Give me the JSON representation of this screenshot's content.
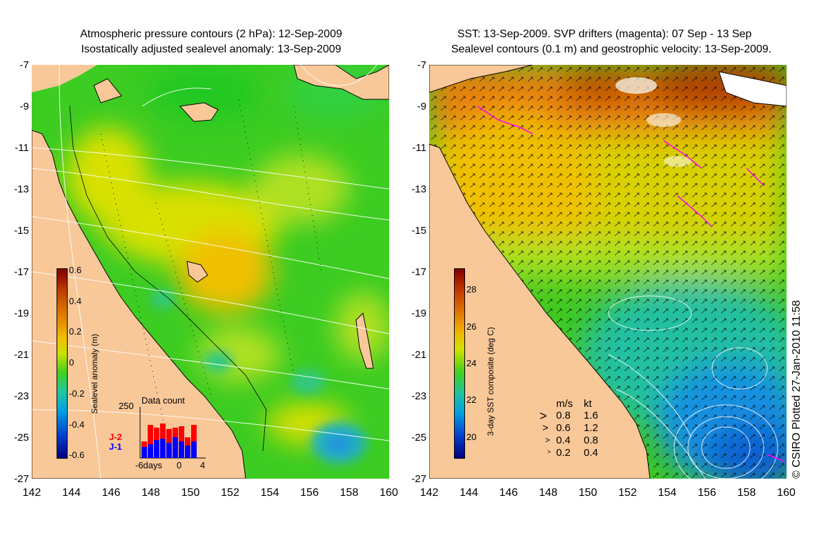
{
  "left_panel": {
    "title_line1": "Atmospheric pressure contours (2 hPa): 12-Sep-2009",
    "title_line2": "Isostatically adjusted sealevel anomaly: 13-Sep-2009",
    "colorbar": {
      "label": "Sealevel anomaly (m)",
      "ticks": [
        "0.6",
        "0.4",
        "0.2",
        "0",
        "-0.2",
        "-0.4",
        "-0.6"
      ]
    },
    "data_count": {
      "title": "Data count",
      "ymax_label": "250",
      "series1": "J-2",
      "series2": "J-1",
      "xlabels": [
        "-6days",
        "0",
        "4"
      ],
      "series1_color": "#ff0000",
      "series2_color": "#0000ff"
    }
  },
  "right_panel": {
    "title_line1": "SST: 13-Sep-2009. SVP drifters (magenta): 07 Sep - 13 Sep",
    "title_line2": "Sealevel contours (0.1 m) and geostrophic velocity: 13-Sep-2009.",
    "colorbar": {
      "label": "3-day SST composite (deg C)",
      "ticks": [
        "28",
        "26",
        "24",
        "22",
        "20"
      ]
    },
    "legend": {
      "header_ms": "m/s",
      "header_kt": "kt",
      "rows": [
        {
          "ms": "0.8",
          "kt": "1.6"
        },
        {
          "ms": "0.6",
          "kt": "1.2"
        },
        {
          "ms": "0.4",
          "kt": "0.8"
        },
        {
          "ms": "0.2",
          "kt": "0.4"
        }
      ]
    }
  },
  "axes": {
    "y_ticks": [
      "-7",
      "-9",
      "-11",
      "-13",
      "-15",
      "-17",
      "-19",
      "-21",
      "-23",
      "-25",
      "-27"
    ],
    "x_ticks": [
      "142",
      "144",
      "146",
      "148",
      "150",
      "152",
      "154",
      "156",
      "158",
      "160"
    ]
  },
  "copyright": "© CSIRO Plotted 27-Jan-2010 11:58",
  "colors": {
    "land": "#f9c898",
    "ocean_green": "#40d020",
    "ocean_yellow": "#d8e000",
    "cold_blue": "#1070e0",
    "warm_orange": "#e89010",
    "drifter_magenta": "#ff00ff"
  }
}
